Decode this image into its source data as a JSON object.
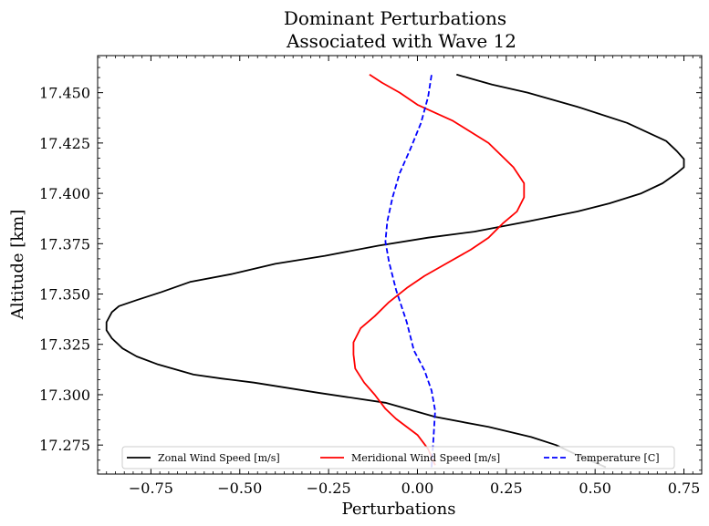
{
  "chart_data": {
    "type": "line",
    "title": [
      "Dominant Perturbations",
      "Associated with Wave 12"
    ],
    "xlabel": "Perturbations",
    "ylabel": "Altitude [km]",
    "xlim": [
      -0.9,
      0.8
    ],
    "ylim": [
      17.2606,
      17.4684
    ],
    "xticks": [
      -0.75,
      -0.5,
      -0.25,
      0.0,
      0.25,
      0.5,
      0.75
    ],
    "xtick_labels": [
      "−0.75",
      "−0.50",
      "−0.25",
      "0.00",
      "0.25",
      "0.50",
      "0.75"
    ],
    "yticks": [
      17.275,
      17.3,
      17.325,
      17.35,
      17.375,
      17.4,
      17.425,
      17.45
    ],
    "ytick_labels": [
      "17.275",
      "17.300",
      "17.325",
      "17.350",
      "17.375",
      "17.400",
      "17.425",
      "17.450"
    ],
    "grid": false,
    "legend_position": "bottom",
    "series": [
      {
        "name": "Zonal Wind Speed [m/s]",
        "color": "#000000",
        "dash": "solid",
        "points": [
          [
            0.53,
            17.264
          ],
          [
            0.45,
            17.27
          ],
          [
            0.39,
            17.275
          ],
          [
            0.32,
            17.279
          ],
          [
            0.2,
            17.284
          ],
          [
            0.05,
            17.289
          ],
          [
            -0.09,
            17.296
          ],
          [
            -0.28,
            17.301
          ],
          [
            -0.46,
            17.306
          ],
          [
            -0.55,
            17.308
          ],
          [
            -0.63,
            17.31
          ],
          [
            -0.73,
            17.315
          ],
          [
            -0.79,
            17.319
          ],
          [
            -0.83,
            17.323
          ],
          [
            -0.86,
            17.328
          ],
          [
            -0.875,
            17.332
          ],
          [
            -0.875,
            17.336
          ],
          [
            -0.86,
            17.341
          ],
          [
            -0.84,
            17.344
          ],
          [
            -0.79,
            17.347
          ],
          [
            -0.72,
            17.351
          ],
          [
            -0.64,
            17.356
          ],
          [
            -0.52,
            17.36
          ],
          [
            -0.4,
            17.365
          ],
          [
            -0.26,
            17.369
          ],
          [
            -0.11,
            17.374
          ],
          [
            0.03,
            17.378
          ],
          [
            0.16,
            17.381
          ],
          [
            0.31,
            17.386
          ],
          [
            0.45,
            17.391
          ],
          [
            0.54,
            17.395
          ],
          [
            0.63,
            17.4
          ],
          [
            0.69,
            17.405
          ],
          [
            0.73,
            17.41
          ],
          [
            0.75,
            17.413
          ],
          [
            0.75,
            17.417
          ],
          [
            0.73,
            17.421
          ],
          [
            0.7,
            17.426
          ],
          [
            0.59,
            17.435
          ],
          [
            0.45,
            17.443
          ],
          [
            0.31,
            17.45
          ],
          [
            0.21,
            17.454
          ],
          [
            0.11,
            17.459
          ]
        ]
      },
      {
        "name": "Meridional Wind Speed [m/s]",
        "color": "#ff0000",
        "dash": "solid",
        "points": [
          [
            0.05,
            17.265
          ],
          [
            0.03,
            17.273
          ],
          [
            0.0,
            17.28
          ],
          [
            -0.06,
            17.288
          ],
          [
            -0.09,
            17.293
          ],
          [
            -0.12,
            17.3
          ],
          [
            -0.15,
            17.306
          ],
          [
            -0.175,
            17.313
          ],
          [
            -0.18,
            17.32
          ],
          [
            -0.18,
            17.326
          ],
          [
            -0.16,
            17.333
          ],
          [
            -0.12,
            17.339
          ],
          [
            -0.08,
            17.346
          ],
          [
            -0.03,
            17.353
          ],
          [
            0.02,
            17.359
          ],
          [
            0.08,
            17.365
          ],
          [
            0.15,
            17.372
          ],
          [
            0.2,
            17.378
          ],
          [
            0.24,
            17.385
          ],
          [
            0.28,
            17.391
          ],
          [
            0.3,
            17.398
          ],
          [
            0.3,
            17.405
          ],
          [
            0.27,
            17.413
          ],
          [
            0.2,
            17.425
          ],
          [
            0.1,
            17.436
          ],
          [
            0.0,
            17.444
          ],
          [
            -0.05,
            17.45
          ],
          [
            -0.1,
            17.455
          ],
          [
            -0.135,
            17.459
          ]
        ]
      },
      {
        "name": "Temperature [C]",
        "color": "#0000ff",
        "dash": "dashed",
        "points": [
          [
            0.04,
            17.264
          ],
          [
            0.045,
            17.278
          ],
          [
            0.05,
            17.292
          ],
          [
            0.04,
            17.302
          ],
          [
            0.02,
            17.312
          ],
          [
            -0.01,
            17.322
          ],
          [
            -0.03,
            17.336
          ],
          [
            -0.06,
            17.352
          ],
          [
            -0.08,
            17.366
          ],
          [
            -0.09,
            17.376
          ],
          [
            -0.085,
            17.386
          ],
          [
            -0.07,
            17.398
          ],
          [
            -0.05,
            17.41
          ],
          [
            -0.02,
            17.422
          ],
          [
            0.01,
            17.435
          ],
          [
            0.03,
            17.448
          ],
          [
            0.04,
            17.459
          ]
        ]
      }
    ]
  }
}
